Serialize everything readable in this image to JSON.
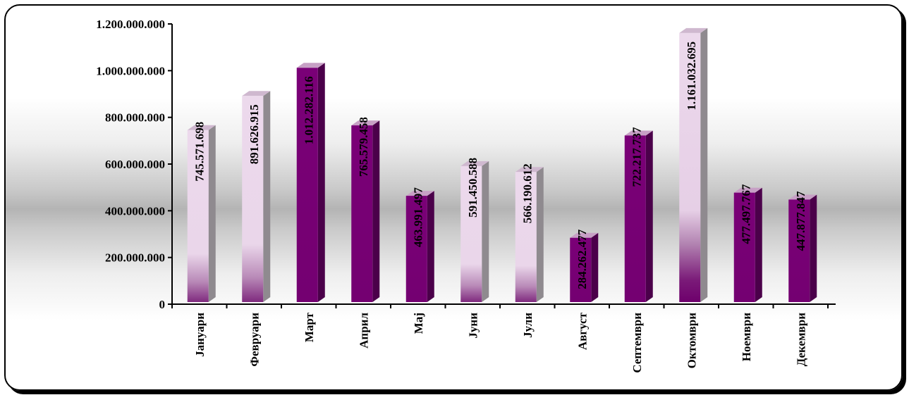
{
  "chart_data": {
    "type": "bar",
    "categories": [
      "Јануари",
      "Февруари",
      "Март",
      "Април",
      "Мај",
      "Јуни",
      "Јули",
      "Август",
      "Септември",
      "Октомври",
      "Ноември",
      "Декември"
    ],
    "values": [
      745571698,
      891626915,
      1012282116,
      765579458,
      463991497,
      591450588,
      566190612,
      284262477,
      722217737,
      1161032695,
      477497767,
      447877847
    ],
    "value_labels": [
      "745.571.698",
      "891.626.915",
      "1.012.282.116",
      "765.579.458",
      "463.991.497",
      "591.450.588",
      "566.190.612",
      "284.262.477",
      "722.217.737",
      "1.161.032.695",
      "477.497.767",
      "447.877.847"
    ],
    "bar_styles": [
      "light",
      "light",
      "dark",
      "dark",
      "dark",
      "light",
      "light",
      "dark",
      "dark",
      "light",
      "dark",
      "dark"
    ],
    "label_inside": [
      false,
      true,
      true,
      false,
      false,
      false,
      false,
      false,
      false,
      true,
      false,
      false
    ],
    "yticks": [
      "0",
      "200.000.000",
      "400.000.000",
      "600.000.000",
      "800.000.000",
      "1.000.000.000",
      "1.200.000.000"
    ],
    "ylim": [
      0,
      1200000000
    ],
    "title": "",
    "xlabel": "",
    "ylabel": "",
    "grid": false,
    "legend": "none",
    "colors": {
      "dark": "#7a0077",
      "dark_side": "#4b004a",
      "light": "#ead6ea",
      "light_side": "#8f8a8f",
      "top": "#c7a0c5"
    }
  }
}
